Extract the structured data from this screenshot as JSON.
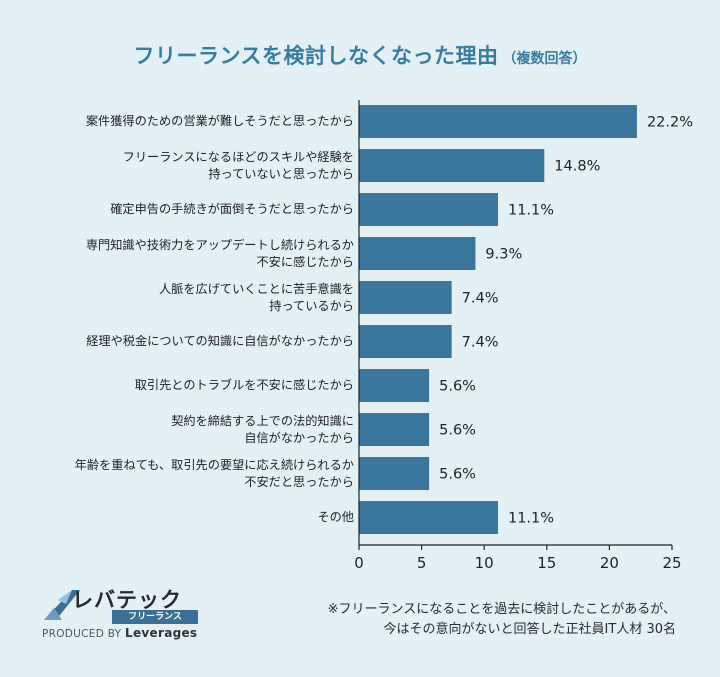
{
  "header": {
    "title": "フリーランスを検討しなくなった理由",
    "subtitle": "（複数回答）"
  },
  "chart_data": {
    "type": "bar",
    "orientation": "horizontal",
    "categories": [
      [
        "案件獲得のための営業が難しそうだと思ったから"
      ],
      [
        "フリーランスになるほどのスキルや経験を",
        "持っていないと思ったから"
      ],
      [
        "確定申告の手続きが面倒そうだと思ったから"
      ],
      [
        "専門知識や技術力をアップデートし続けられるか",
        "不安に感じたから"
      ],
      [
        "人脈を広げていくことに苦手意識を",
        "持っているから"
      ],
      [
        "経理や税金についての知識に自信がなかったから"
      ],
      [
        "取引先とのトラブルを不安に感じたから"
      ],
      [
        "契約を締結する上での法的知識に",
        "自信がなかったから"
      ],
      [
        "年齢を重ねても、取引先の要望に応え続けられるか",
        "不安だと思ったから"
      ],
      [
        "その他"
      ]
    ],
    "values": [
      22.2,
      14.8,
      11.1,
      9.3,
      7.4,
      7.4,
      5.6,
      5.6,
      5.6,
      11.1
    ],
    "value_labels": [
      "22.2%",
      "14.8%",
      "11.1%",
      "9.3%",
      "7.4%",
      "7.4%",
      "5.6%",
      "5.6%",
      "5.6%",
      "11.1%"
    ],
    "xlim": [
      0,
      25
    ],
    "xticks": [
      "0",
      "5",
      "10",
      "15",
      "20",
      "25"
    ],
    "grid": false,
    "legend": "none",
    "bar_color": "#3a759c"
  },
  "logo": {
    "name": "レバテック",
    "sub": "フリーランス",
    "produced_prefix": "PRODUCED BY",
    "produced_brand": "Leverages"
  },
  "footnote": {
    "line1": "※フリーランスになることを過去に検討したことがあるが、",
    "line2": "今はその意向がないと回答した正社員IT人材 30名"
  }
}
